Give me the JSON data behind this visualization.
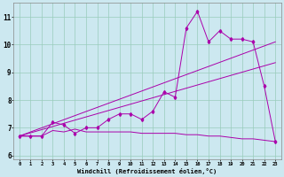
{
  "bg_color": "#cce8f0",
  "line_color": "#aa00aa",
  "grid_color": "#99ccbb",
  "xlabel": "Windchill (Refroidissement éolien,°C)",
  "ylabel_ticks": [
    6,
    7,
    8,
    9,
    10,
    11
  ],
  "xlim": [
    -0.5,
    23.5
  ],
  "ylim": [
    5.85,
    11.5
  ],
  "xticks": [
    0,
    1,
    2,
    3,
    4,
    5,
    6,
    7,
    8,
    9,
    10,
    11,
    12,
    13,
    14,
    15,
    16,
    17,
    18,
    19,
    20,
    21,
    22,
    23
  ],
  "series1_x": [
    0,
    1,
    2,
    3,
    4,
    5,
    6,
    7,
    8,
    9,
    10,
    11,
    12,
    13,
    14,
    15,
    16,
    17,
    18,
    19,
    20,
    21,
    22,
    23
  ],
  "series1_y": [
    6.7,
    6.7,
    6.7,
    7.2,
    7.1,
    6.8,
    7.0,
    7.0,
    7.3,
    7.5,
    7.5,
    7.3,
    7.6,
    8.3,
    8.1,
    10.6,
    11.2,
    10.1,
    10.5,
    10.2,
    10.2,
    10.1,
    8.5,
    6.5
  ],
  "series2_x": [
    0,
    23
  ],
  "series2_y": [
    6.7,
    9.35
  ],
  "series3_x": [
    0,
    23
  ],
  "series3_y": [
    6.7,
    10.1
  ],
  "series4_x": [
    0,
    1,
    2,
    3,
    4,
    5,
    6,
    7,
    8,
    9,
    10,
    11,
    12,
    13,
    14,
    15,
    16,
    17,
    18,
    19,
    20,
    21,
    22,
    23
  ],
  "series4_y": [
    6.7,
    6.7,
    6.7,
    6.9,
    6.85,
    6.95,
    6.85,
    6.85,
    6.85,
    6.85,
    6.85,
    6.8,
    6.8,
    6.8,
    6.8,
    6.75,
    6.75,
    6.7,
    6.7,
    6.65,
    6.6,
    6.6,
    6.55,
    6.5
  ]
}
